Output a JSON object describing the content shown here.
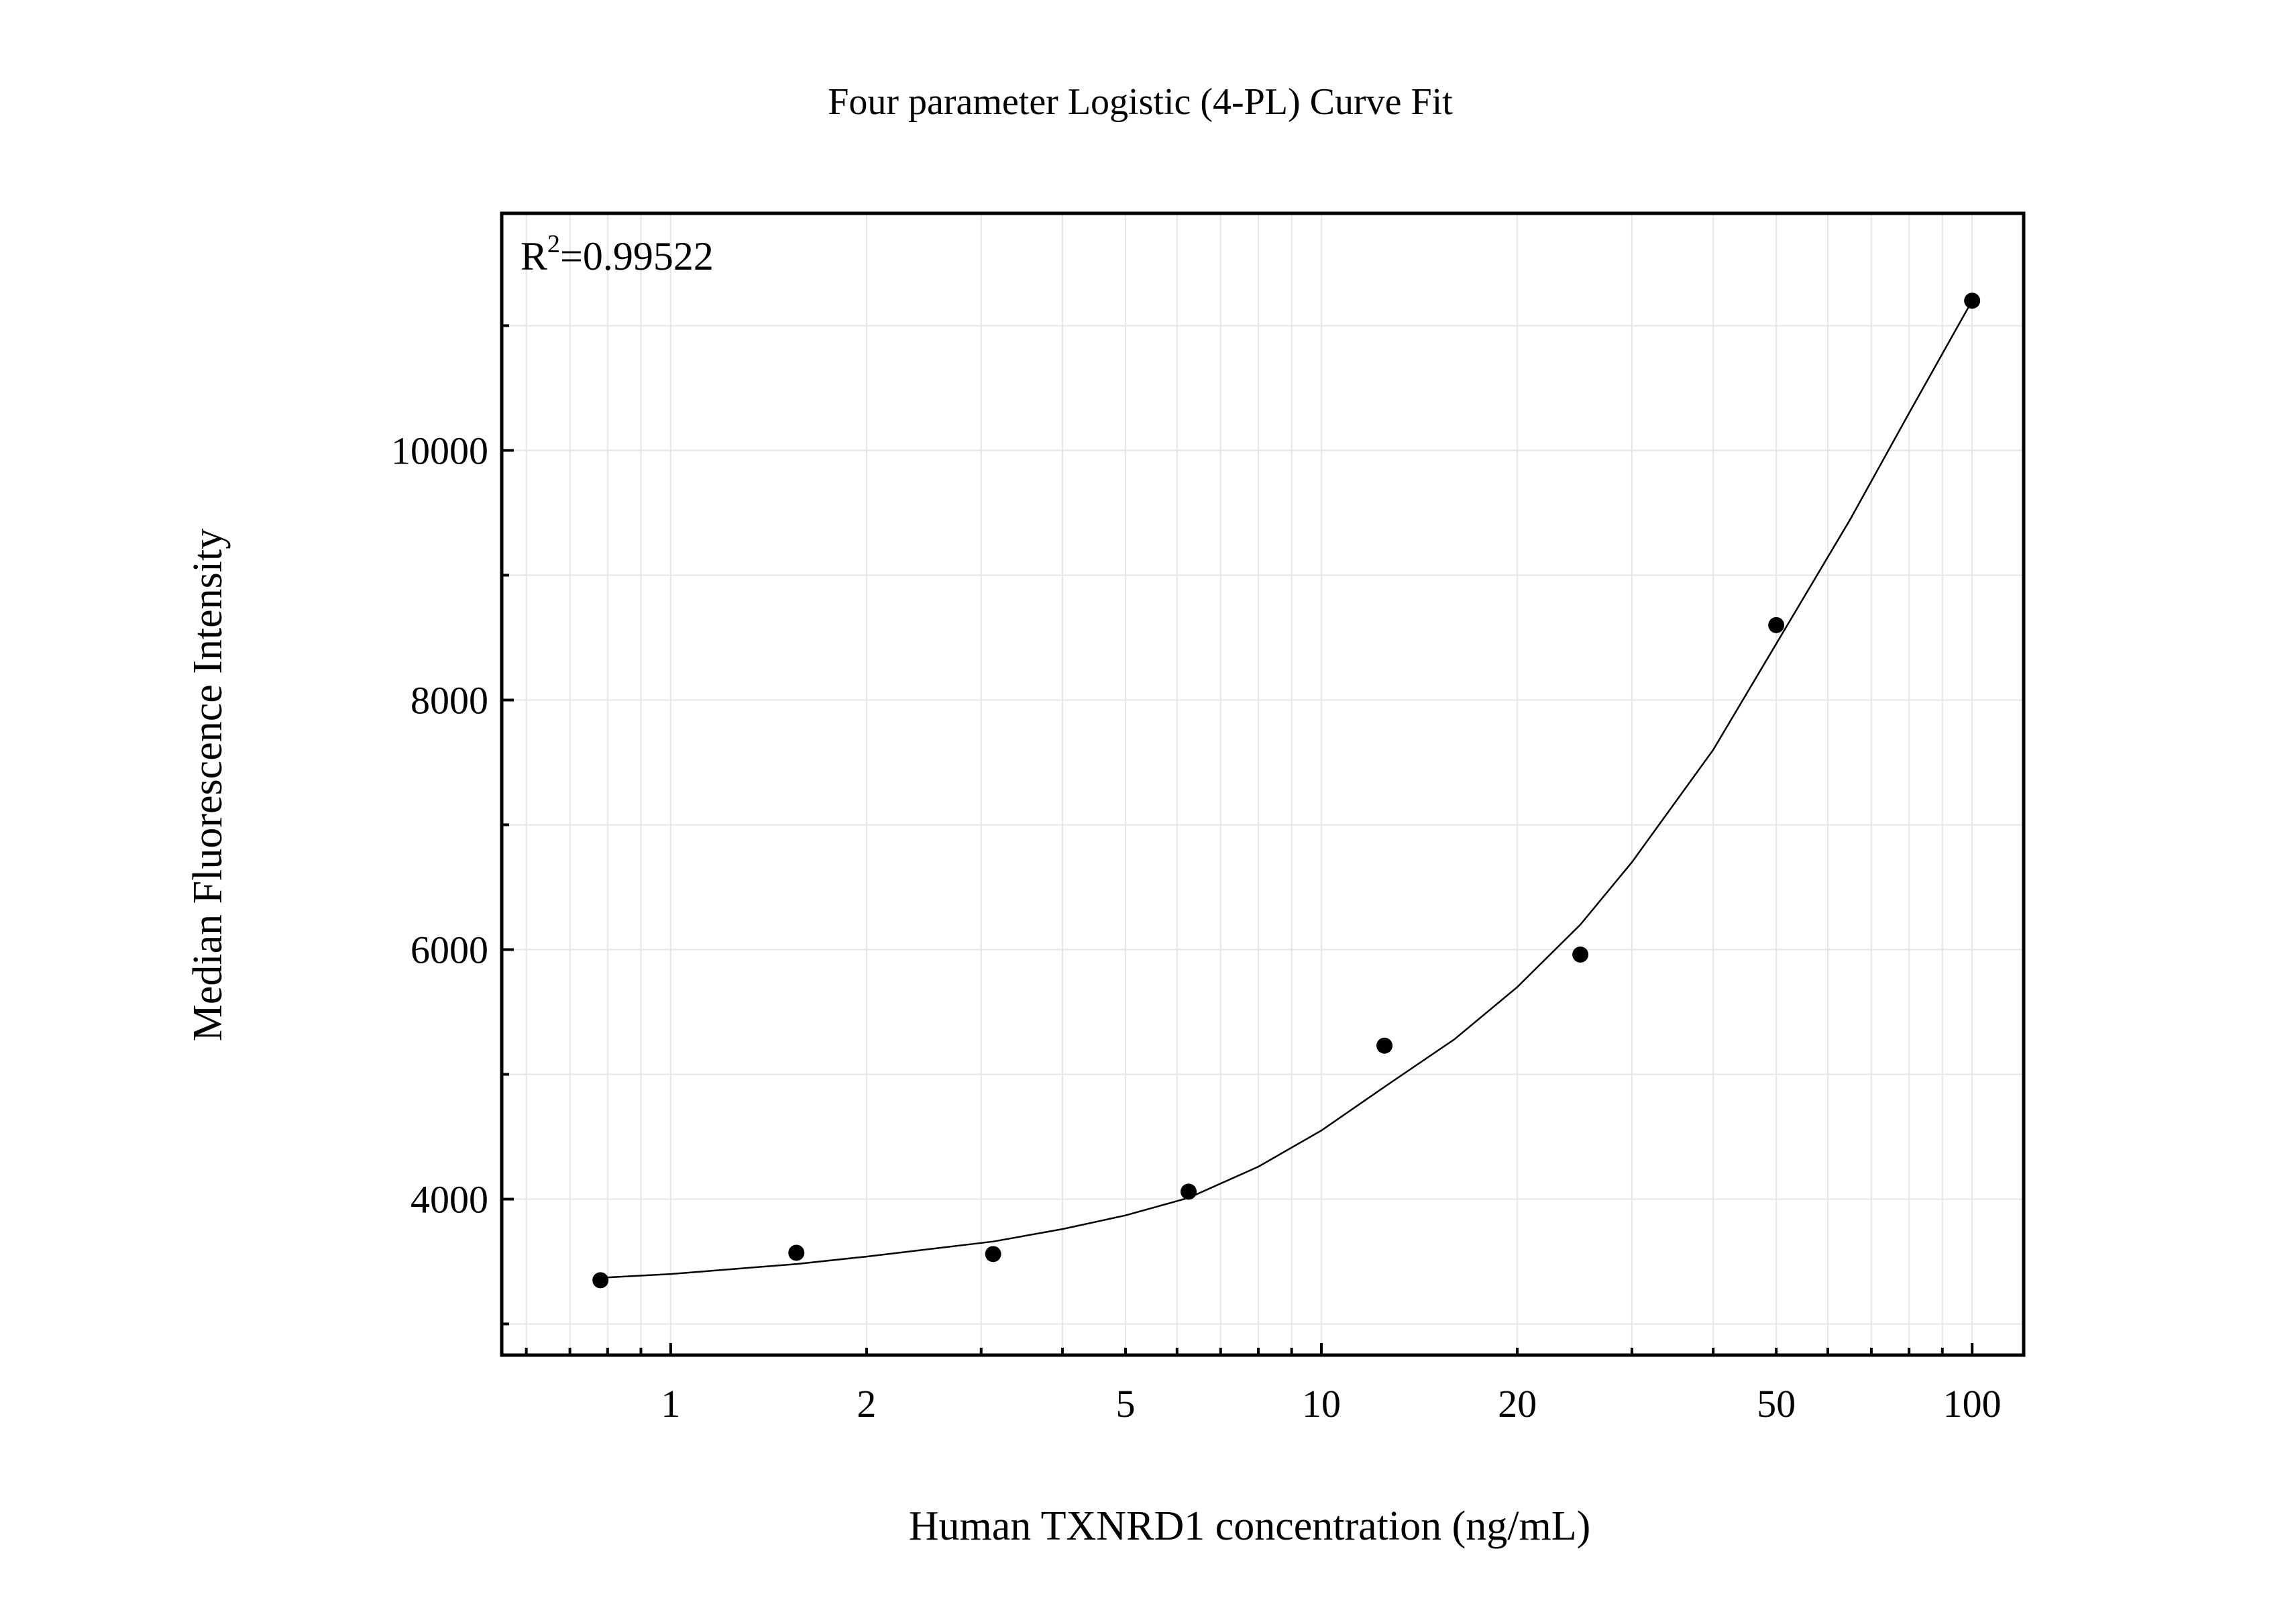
{
  "chart_data": {
    "type": "scatter",
    "title": "Four parameter Logistic (4-PL) Curve Fit",
    "xlabel": "Human TXNRD1 concentration (ng/mL)",
    "ylabel": "Median Fluorescence Intensity",
    "x_scale": "log",
    "xlim": [
      0.55,
      120
    ],
    "ylim": [
      2750,
      11900
    ],
    "x_ticks": [
      {
        "value": 1,
        "label": "1"
      },
      {
        "value": 2,
        "label": "2"
      },
      {
        "value": 5,
        "label": "5"
      },
      {
        "value": 10,
        "label": "10"
      },
      {
        "value": 20,
        "label": "20"
      },
      {
        "value": 50,
        "label": "50"
      },
      {
        "value": 100,
        "label": "100"
      }
    ],
    "y_ticks": [
      {
        "value": 4000,
        "label": "4000"
      },
      {
        "value": 6000,
        "label": "6000"
      },
      {
        "value": 8000,
        "label": "8000"
      },
      {
        "value": 10000,
        "label": "10000"
      }
    ],
    "grid": true,
    "annotation": {
      "text": "R",
      "superscript": "2",
      "suffix": "=0.99522"
    },
    "series": [
      {
        "points": [
          {
            "x": 0.78,
            "y": 3350
          },
          {
            "x": 1.56,
            "y": 3570
          },
          {
            "x": 3.13,
            "y": 3560
          },
          {
            "x": 6.25,
            "y": 4060
          },
          {
            "x": 12.5,
            "y": 5230
          },
          {
            "x": 25,
            "y": 5960
          },
          {
            "x": 50,
            "y": 8600
          },
          {
            "x": 100,
            "y": 11200
          }
        ]
      }
    ],
    "fit_curve": [
      {
        "x": 0.78,
        "y": 3370
      },
      {
        "x": 1,
        "y": 3400
      },
      {
        "x": 1.56,
        "y": 3480
      },
      {
        "x": 2,
        "y": 3540
      },
      {
        "x": 3.13,
        "y": 3660
      },
      {
        "x": 4,
        "y": 3760
      },
      {
        "x": 5,
        "y": 3870
      },
      {
        "x": 6.25,
        "y": 4010
      },
      {
        "x": 8,
        "y": 4260
      },
      {
        "x": 10,
        "y": 4550
      },
      {
        "x": 12.5,
        "y": 4900
      },
      {
        "x": 16,
        "y": 5280
      },
      {
        "x": 20,
        "y": 5700
      },
      {
        "x": 25,
        "y": 6200
      },
      {
        "x": 30,
        "y": 6700
      },
      {
        "x": 40,
        "y": 7600
      },
      {
        "x": 50,
        "y": 8450
      },
      {
        "x": 65,
        "y": 9450
      },
      {
        "x": 80,
        "y": 10300
      },
      {
        "x": 100,
        "y": 11200
      }
    ],
    "colors": {
      "points": "#000000",
      "curve": "#000000",
      "grid": "#e6e6e6",
      "frame": "#000000"
    }
  }
}
